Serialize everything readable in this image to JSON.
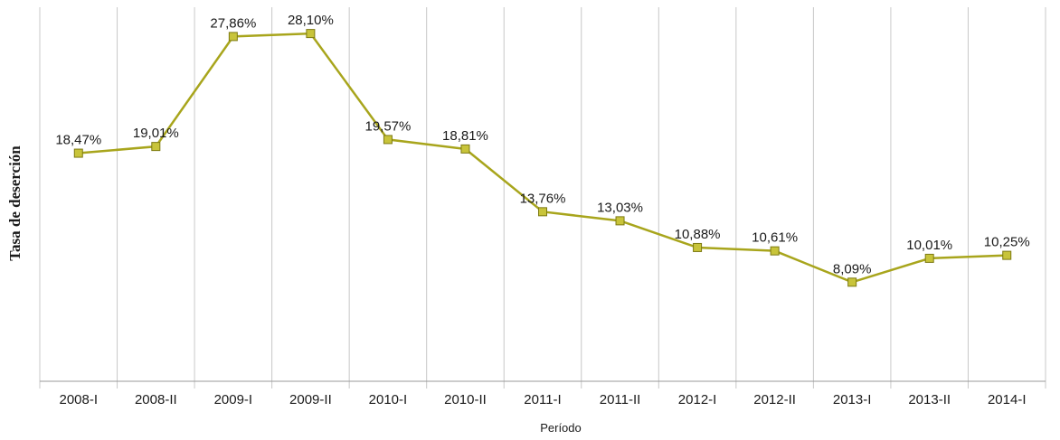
{
  "chart_data": {
    "type": "line",
    "xlabel": "Período",
    "ylabel": "Tasa de deserción",
    "categories": [
      "2008-I",
      "2008-II",
      "2009-I",
      "2009-II",
      "2010-I",
      "2010-II",
      "2011-I",
      "2011-II",
      "2012-I",
      "2012-II",
      "2013-I",
      "2013-II",
      "2014-I"
    ],
    "series": [
      {
        "values": [
          18.47,
          19.01,
          27.86,
          28.1,
          19.57,
          18.81,
          13.76,
          13.03,
          10.88,
          10.61,
          8.09,
          10.01,
          10.25
        ],
        "labels": [
          "18,47%",
          "19,01%",
          "27,86%",
          "28,10%",
          "19,57%",
          "18,81%",
          "13,76%",
          "13,03%",
          "10,88%",
          "10,61%",
          "8,09%",
          "10,01%",
          "10,25%"
        ],
        "color": "#a8a51c",
        "marker_color": "#c8c43a"
      }
    ],
    "ylim": [
      0,
      30
    ],
    "grid": "vertical",
    "legend": "none"
  }
}
